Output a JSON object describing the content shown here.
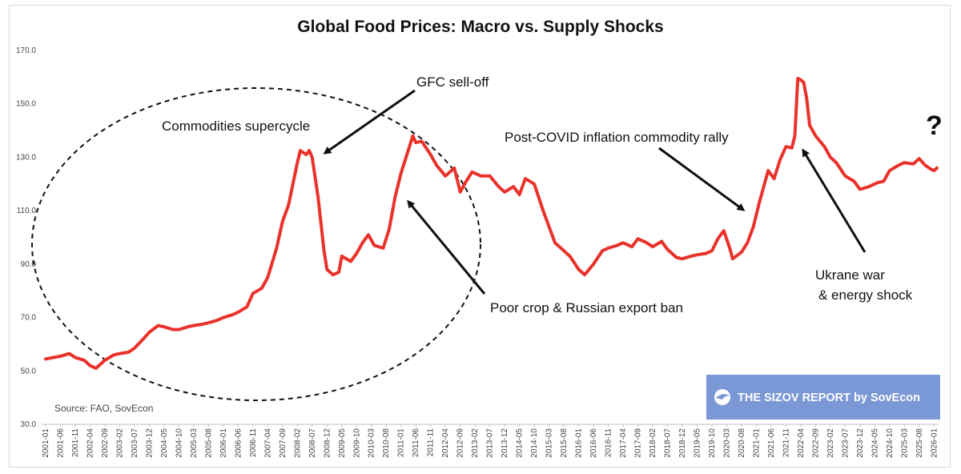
{
  "chart_data": {
    "type": "line",
    "title": "Global Food Prices: Macro vs. Supply Shocks",
    "xlabel": "",
    "ylabel": "",
    "ylim": [
      30,
      170
    ],
    "yticks": [
      "30.0",
      "50.0",
      "70.0",
      "90.0",
      "110.0",
      "130.0",
      "150.0",
      "170.0"
    ],
    "xticks": [
      "2001-01",
      "2001-06",
      "2001-11",
      "2002-04",
      "2002-09",
      "2003-02",
      "2003-07",
      "2003-12",
      "2004-05",
      "2004-10",
      "2005-03",
      "2005-08",
      "2006-01",
      "2006-06",
      "2006-11",
      "2007-04",
      "2007-09",
      "2008-02",
      "2008-07",
      "2008-12",
      "2009-05",
      "2009-10",
      "2010-03",
      "2010-08",
      "2011-01",
      "2011-06",
      "2011-11",
      "2012-04",
      "2012-09",
      "2013-02",
      "2013-07",
      "2013-12",
      "2014-05",
      "2014-10",
      "2015-03",
      "2015-08",
      "2016-01",
      "2016-06",
      "2016-11",
      "2017-04",
      "2017-09",
      "2018-02",
      "2018-07",
      "2018-12",
      "2019-05",
      "2019-10",
      "2020-03",
      "2020-08",
      "2021-01",
      "2021-06",
      "2021-11",
      "2022-04",
      "2022-09",
      "2023-02",
      "2023-07",
      "2023-12",
      "2024-05",
      "2024-10",
      "2025-03",
      "2025-08",
      "2026-01"
    ],
    "grid": false,
    "legend": "none",
    "series": [
      {
        "color": "#e8322a",
        "points": [
          [
            "2001-01",
            54.5
          ],
          [
            "2001-06",
            55.5
          ],
          [
            "2001-09",
            56.5
          ],
          [
            "2001-11",
            55.0
          ],
          [
            "2002-02",
            54.0
          ],
          [
            "2002-04",
            52.0
          ],
          [
            "2002-06",
            51.0
          ],
          [
            "2002-09",
            54.0
          ],
          [
            "2002-12",
            56.0
          ],
          [
            "2003-02",
            56.5
          ],
          [
            "2003-05",
            57.0
          ],
          [
            "2003-07",
            58.5
          ],
          [
            "2003-10",
            62.0
          ],
          [
            "2003-12",
            64.5
          ],
          [
            "2004-03",
            67.0
          ],
          [
            "2004-05",
            66.5
          ],
          [
            "2004-08",
            65.5
          ],
          [
            "2004-10",
            65.5
          ],
          [
            "2005-01",
            66.5
          ],
          [
            "2005-03",
            67.0
          ],
          [
            "2005-06",
            67.5
          ],
          [
            "2005-08",
            68.0
          ],
          [
            "2005-11",
            69.0
          ],
          [
            "2006-01",
            70.0
          ],
          [
            "2006-04",
            71.0
          ],
          [
            "2006-06",
            72.0
          ],
          [
            "2006-09",
            74.0
          ],
          [
            "2006-11",
            79.0
          ],
          [
            "2007-02",
            81.0
          ],
          [
            "2007-04",
            85.0
          ],
          [
            "2007-07",
            96.0
          ],
          [
            "2007-09",
            106.0
          ],
          [
            "2007-11",
            112.0
          ],
          [
            "2008-02",
            128.0
          ],
          [
            "2008-03",
            132.5
          ],
          [
            "2008-05",
            131.0
          ],
          [
            "2008-06",
            132.5
          ],
          [
            "2008-07",
            130.0
          ],
          [
            "2008-09",
            115.0
          ],
          [
            "2008-11",
            95.0
          ],
          [
            "2008-12",
            88.0
          ],
          [
            "2009-02",
            86.0
          ],
          [
            "2009-04",
            87.0
          ],
          [
            "2009-05",
            93.0
          ],
          [
            "2009-08",
            91.0
          ],
          [
            "2009-10",
            94.0
          ],
          [
            "2009-12",
            98.0
          ],
          [
            "2010-02",
            101.0
          ],
          [
            "2010-04",
            97.0
          ],
          [
            "2010-07",
            96.0
          ],
          [
            "2010-09",
            103.0
          ],
          [
            "2010-11",
            115.0
          ],
          [
            "2011-01",
            124.0
          ],
          [
            "2011-03",
            131.0
          ],
          [
            "2011-05",
            138.0
          ],
          [
            "2011-06",
            135.5
          ],
          [
            "2011-08",
            136.0
          ],
          [
            "2011-11",
            131.0
          ],
          [
            "2012-01",
            127.0
          ],
          [
            "2012-04",
            123.0
          ],
          [
            "2012-07",
            126.0
          ],
          [
            "2012-09",
            117.0
          ],
          [
            "2012-11",
            121.0
          ],
          [
            "2013-01",
            124.5
          ],
          [
            "2013-04",
            123.0
          ],
          [
            "2013-07",
            123.0
          ],
          [
            "2013-10",
            119.0
          ],
          [
            "2013-12",
            117.0
          ],
          [
            "2014-03",
            119.0
          ],
          [
            "2014-05",
            116.0
          ],
          [
            "2014-07",
            122.0
          ],
          [
            "2014-10",
            120.0
          ],
          [
            "2015-01",
            110.0
          ],
          [
            "2015-03",
            104.0
          ],
          [
            "2015-05",
            98.0
          ],
          [
            "2015-08",
            95.0
          ],
          [
            "2015-10",
            93.0
          ],
          [
            "2016-01",
            88.0
          ],
          [
            "2016-03",
            86.0
          ],
          [
            "2016-06",
            90.0
          ],
          [
            "2016-09",
            95.0
          ],
          [
            "2016-11",
            96.0
          ],
          [
            "2017-02",
            97.0
          ],
          [
            "2017-04",
            98.0
          ],
          [
            "2017-07",
            96.5
          ],
          [
            "2017-09",
            99.5
          ],
          [
            "2017-12",
            98.0
          ],
          [
            "2018-02",
            96.5
          ],
          [
            "2018-05",
            98.5
          ],
          [
            "2018-07",
            95.5
          ],
          [
            "2018-10",
            92.5
          ],
          [
            "2018-12",
            92.0
          ],
          [
            "2019-03",
            93.0
          ],
          [
            "2019-05",
            93.5
          ],
          [
            "2019-08",
            94.0
          ],
          [
            "2019-10",
            95.0
          ],
          [
            "2019-12",
            99.5
          ],
          [
            "2020-02",
            102.5
          ],
          [
            "2020-04",
            96.0
          ],
          [
            "2020-05",
            92.0
          ],
          [
            "2020-08",
            94.5
          ],
          [
            "2020-10",
            98.0
          ],
          [
            "2020-12",
            104.0
          ],
          [
            "2021-02",
            113.0
          ],
          [
            "2021-05",
            125.0
          ],
          [
            "2021-07",
            122.0
          ],
          [
            "2021-09",
            129.0
          ],
          [
            "2021-11",
            134.0
          ],
          [
            "2022-01",
            133.5
          ],
          [
            "2022-02",
            138.0
          ],
          [
            "2022-03",
            159.5
          ],
          [
            "2022-04",
            159.0
          ],
          [
            "2022-05",
            158.0
          ],
          [
            "2022-06",
            152.0
          ],
          [
            "2022-07",
            142.0
          ],
          [
            "2022-09",
            138.0
          ],
          [
            "2022-12",
            134.0
          ],
          [
            "2023-02",
            130.0
          ],
          [
            "2023-04",
            128.0
          ],
          [
            "2023-07",
            123.0
          ],
          [
            "2023-10",
            121.0
          ],
          [
            "2023-12",
            118.0
          ],
          [
            "2024-03",
            119.0
          ],
          [
            "2024-06",
            120.5
          ],
          [
            "2024-08",
            121.0
          ],
          [
            "2024-10",
            125.0
          ],
          [
            "2025-01",
            127.0
          ],
          [
            "2025-03",
            128.0
          ],
          [
            "2025-06",
            127.5
          ],
          [
            "2025-08",
            129.5
          ],
          [
            "2025-10",
            127.0
          ],
          [
            "2025-12",
            125.5
          ],
          [
            "2026-01",
            125.0
          ],
          [
            "2026-02",
            126.0
          ]
        ]
      }
    ],
    "annotations": [
      {
        "id": "gfc",
        "text": "GFC sell-off"
      },
      {
        "id": "supercycle",
        "text": "Commodities supercycle"
      },
      {
        "id": "covid",
        "text": "Post-COVID inflation commodity rally"
      },
      {
        "id": "crop",
        "text": "Poor crop & Russian export ban"
      },
      {
        "id": "ukraine1",
        "text": "Ukrane war"
      },
      {
        "id": "ukraine2",
        "text": "& energy shock"
      },
      {
        "id": "question",
        "text": "?"
      }
    ]
  },
  "source": "Source: FAO, SovEcon",
  "brand": {
    "text": "THE SIZOV REPORT by SovEcon",
    "background": "#7a98d6"
  }
}
